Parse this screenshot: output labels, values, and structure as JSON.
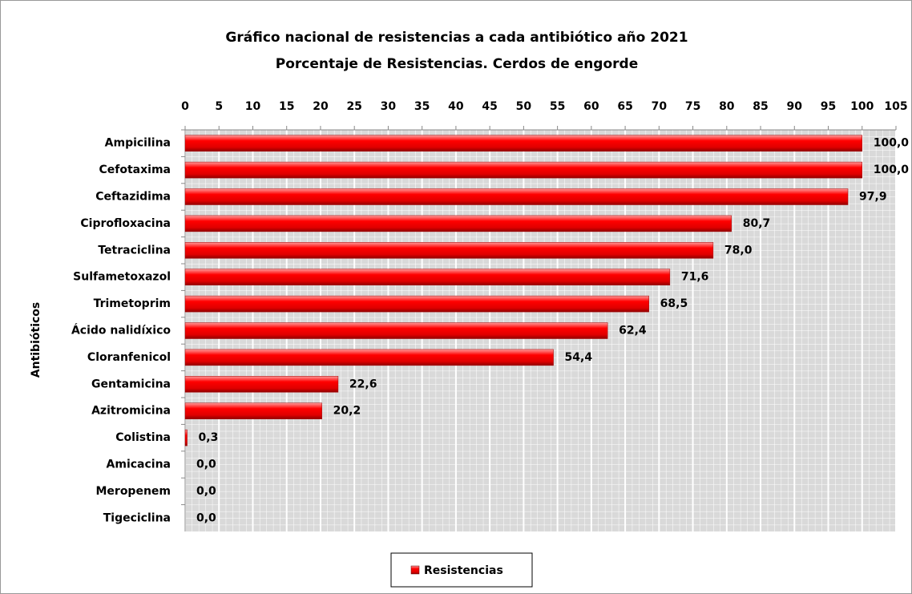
{
  "chart_data": {
    "type": "bar",
    "orientation": "horizontal",
    "title": "Gráfico nacional de resistencias a cada antibiótico año 2021",
    "subtitle": "Porcentaje de Resistencias. Cerdos de engorde",
    "y_label": "Antibióticos",
    "categories": [
      "Ampicilina",
      "Cefotaxima",
      "Ceftazidima",
      "Ciprofloxacina",
      "Tetraciclina",
      "Sulfametoxazol",
      "Trimetoprim",
      "Ácido nalidíxico",
      "Cloranfenicol",
      "Gentamicina",
      "Azitromicina",
      "Colistina",
      "Amicacina",
      "Meropenem",
      "Tigeciclina"
    ],
    "series": [
      {
        "name": "Resistencias",
        "color": "#ff0000",
        "values": [
          100,
          100,
          97.9,
          80.7,
          78,
          71.6,
          68.5,
          62.4,
          54.4,
          22.6,
          20.2,
          0.3,
          0,
          0,
          0
        ],
        "value_labels": [
          "100,0",
          "100,0",
          "97,9",
          "80,7",
          "78,0",
          "71,6",
          "68,5",
          "62,4",
          "54,4",
          "22,6",
          "20,2",
          "0,3",
          "0,0",
          "0,0",
          "0,0"
        ]
      }
    ],
    "xlim": [
      0,
      105
    ],
    "xticks": [
      0,
      5,
      10,
      15,
      20,
      25,
      30,
      35,
      40,
      45,
      50,
      55,
      60,
      65,
      70,
      75,
      80,
      85,
      90,
      95,
      100,
      105
    ],
    "grid": true,
    "legend": "bottom"
  }
}
